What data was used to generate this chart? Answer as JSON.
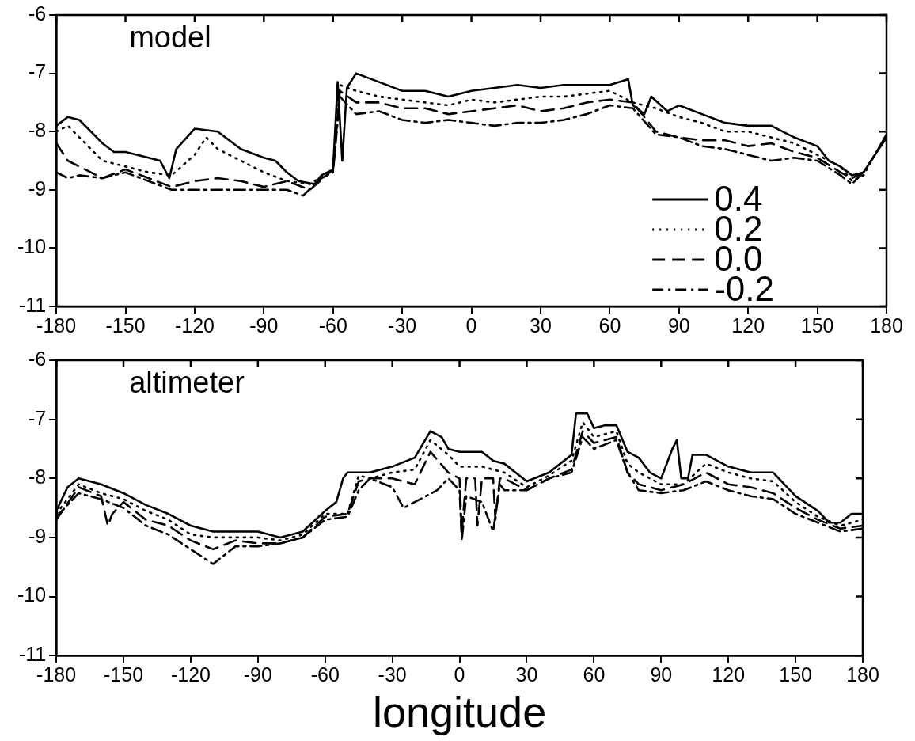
{
  "chart_data": [
    {
      "type": "line",
      "title": "model",
      "xlim": [
        -180,
        180
      ],
      "xticks": [
        -180,
        -150,
        -120,
        -90,
        -60,
        -30,
        0,
        30,
        60,
        90,
        120,
        150,
        180
      ],
      "ylim": [
        -11,
        -6
      ],
      "yticks": [
        -6,
        -7,
        -8,
        -9,
        -10,
        -11
      ],
      "grid": false,
      "legend": "bottom right",
      "series": [
        {
          "name": "0.4",
          "color": "#000000",
          "line_style": "solid",
          "x": [
            -180,
            -175,
            -170,
            -160,
            -155,
            -150,
            -140,
            -135,
            -131,
            -128,
            -120,
            -110,
            -100,
            -90,
            -85,
            -80,
            -75,
            -68,
            -65,
            -60,
            -58,
            -56,
            -54,
            -50,
            -40,
            -30,
            -20,
            -10,
            0,
            10,
            20,
            30,
            40,
            50,
            60,
            68,
            70,
            75,
            78,
            85,
            90,
            100,
            110,
            120,
            130,
            140,
            150,
            155,
            160,
            165,
            170,
            175,
            180
          ],
          "values": [
            -7.9,
            -7.75,
            -7.8,
            -8.2,
            -8.35,
            -8.35,
            -8.45,
            -8.5,
            -8.8,
            -8.3,
            -7.95,
            -8.0,
            -8.3,
            -8.45,
            -8.5,
            -8.7,
            -8.85,
            -8.9,
            -8.75,
            -8.65,
            -7.15,
            -8.5,
            -7.25,
            -7.0,
            -7.15,
            -7.3,
            -7.3,
            -7.4,
            -7.3,
            -7.25,
            -7.2,
            -7.25,
            -7.2,
            -7.2,
            -7.2,
            -7.1,
            -7.55,
            -7.7,
            -7.4,
            -7.65,
            -7.55,
            -7.7,
            -7.85,
            -7.9,
            -7.9,
            -8.1,
            -8.25,
            -8.5,
            -8.6,
            -8.75,
            -8.7,
            -8.4,
            -8.05
          ]
        },
        {
          "name": "0.2",
          "color": "#000000",
          "line_style": "dotted",
          "x": [
            -180,
            -175,
            -170,
            -160,
            -150,
            -140,
            -130,
            -120,
            -115,
            -110,
            -100,
            -90,
            -80,
            -70,
            -60,
            -57,
            -50,
            -40,
            -30,
            -20,
            -10,
            0,
            10,
            20,
            30,
            40,
            50,
            60,
            70,
            80,
            90,
            100,
            110,
            120,
            130,
            140,
            150,
            160,
            165,
            170,
            180
          ],
          "values": [
            -8.0,
            -7.9,
            -8.1,
            -8.5,
            -8.6,
            -8.7,
            -8.75,
            -8.4,
            -8.1,
            -8.3,
            -8.5,
            -8.7,
            -8.85,
            -8.9,
            -8.65,
            -7.2,
            -7.3,
            -7.4,
            -7.45,
            -7.5,
            -7.55,
            -7.45,
            -7.5,
            -7.45,
            -7.4,
            -7.4,
            -7.35,
            -7.3,
            -7.5,
            -7.6,
            -7.75,
            -7.85,
            -8.0,
            -8.0,
            -8.1,
            -8.2,
            -8.4,
            -8.6,
            -8.85,
            -8.75,
            -8.05
          ]
        },
        {
          "name": "0.0",
          "color": "#000000",
          "line_style": "dashed",
          "x": [
            -180,
            -175,
            -170,
            -160,
            -150,
            -140,
            -130,
            -120,
            -110,
            -100,
            -90,
            -80,
            -70,
            -60,
            -57,
            -50,
            -40,
            -30,
            -20,
            -10,
            0,
            10,
            20,
            30,
            40,
            50,
            60,
            70,
            80,
            90,
            100,
            110,
            120,
            130,
            140,
            150,
            160,
            165,
            170,
            180
          ],
          "values": [
            -8.2,
            -8.5,
            -8.6,
            -8.8,
            -8.65,
            -8.8,
            -8.95,
            -8.85,
            -8.8,
            -8.85,
            -8.95,
            -8.85,
            -9.0,
            -8.65,
            -7.3,
            -7.5,
            -7.5,
            -7.6,
            -7.6,
            -7.7,
            -7.65,
            -7.6,
            -7.55,
            -7.65,
            -7.6,
            -7.5,
            -7.45,
            -7.5,
            -8.0,
            -8.1,
            -8.15,
            -8.15,
            -8.25,
            -8.2,
            -8.35,
            -8.45,
            -8.7,
            -8.8,
            -8.7,
            -8.1
          ]
        },
        {
          "name": "-0.2",
          "color": "#000000",
          "line_style": "dashdot",
          "x": [
            -180,
            -175,
            -170,
            -160,
            -150,
            -140,
            -130,
            -120,
            -110,
            -100,
            -90,
            -80,
            -73,
            -65,
            -60,
            -57,
            -50,
            -40,
            -30,
            -20,
            -10,
            0,
            10,
            20,
            30,
            40,
            50,
            60,
            70,
            80,
            90,
            100,
            110,
            120,
            130,
            140,
            150,
            160,
            165,
            170,
            180
          ],
          "values": [
            -8.7,
            -8.8,
            -8.75,
            -8.8,
            -8.7,
            -8.85,
            -9.0,
            -9.0,
            -9.0,
            -9.0,
            -9.0,
            -9.0,
            -9.1,
            -8.8,
            -8.7,
            -7.4,
            -7.7,
            -7.65,
            -7.8,
            -7.85,
            -7.8,
            -7.85,
            -7.9,
            -7.85,
            -7.85,
            -7.8,
            -7.7,
            -7.55,
            -7.6,
            -8.05,
            -8.1,
            -8.25,
            -8.3,
            -8.4,
            -8.5,
            -8.45,
            -8.5,
            -8.75,
            -8.9,
            -8.7,
            -8.1
          ]
        }
      ]
    },
    {
      "type": "line",
      "title": "altimeter",
      "xlabel": "longitude",
      "xlim": [
        -180,
        180
      ],
      "xticks": [
        -180,
        -150,
        -120,
        -90,
        -60,
        -30,
        0,
        30,
        60,
        90,
        120,
        150,
        180
      ],
      "ylim": [
        -11,
        -6
      ],
      "yticks": [
        -6,
        -7,
        -8,
        -9,
        -10,
        -11
      ],
      "grid": false,
      "series": [
        {
          "color": "#000000",
          "line_style": "solid",
          "x": [
            -180,
            -175,
            -170,
            -160,
            -150,
            -140,
            -130,
            -120,
            -115,
            -110,
            -100,
            -90,
            -80,
            -70,
            -60,
            -55,
            -52,
            -50,
            -40,
            -30,
            -20,
            -13,
            -8,
            -5,
            0,
            10,
            15,
            20,
            30,
            40,
            45,
            50,
            52,
            57,
            60,
            65,
            70,
            75,
            80,
            85,
            90,
            95,
            97,
            99,
            102,
            104,
            110,
            120,
            130,
            140,
            150,
            160,
            165,
            170,
            175,
            180
          ],
          "values": [
            -8.55,
            -8.15,
            -8.0,
            -8.1,
            -8.25,
            -8.45,
            -8.6,
            -8.8,
            -8.85,
            -8.9,
            -8.9,
            -8.9,
            -9.0,
            -8.9,
            -8.55,
            -8.4,
            -8.0,
            -7.9,
            -7.9,
            -7.8,
            -7.65,
            -7.2,
            -7.3,
            -7.5,
            -7.55,
            -7.55,
            -7.7,
            -7.75,
            -8.05,
            -7.9,
            -7.75,
            -7.6,
            -6.9,
            -6.9,
            -7.15,
            -7.1,
            -7.1,
            -7.55,
            -7.65,
            -7.9,
            -8.0,
            -7.5,
            -7.35,
            -8.0,
            -8.0,
            -7.6,
            -7.6,
            -7.8,
            -7.9,
            -7.9,
            -8.3,
            -8.55,
            -8.75,
            -8.75,
            -8.6,
            -8.6
          ]
        },
        {
          "color": "#000000",
          "line_style": "dotted",
          "x": [
            -180,
            -170,
            -160,
            -150,
            -140,
            -130,
            -120,
            -110,
            -100,
            -90,
            -80,
            -70,
            -60,
            -50,
            -45,
            -40,
            -30,
            -20,
            -13,
            -5,
            0,
            10,
            20,
            30,
            40,
            50,
            55,
            60,
            70,
            75,
            80,
            90,
            100,
            110,
            120,
            130,
            140,
            150,
            160,
            170,
            180
          ],
          "values": [
            -8.6,
            -8.1,
            -8.25,
            -8.35,
            -8.55,
            -8.7,
            -8.95,
            -9.0,
            -9.0,
            -9.0,
            -9.05,
            -8.95,
            -8.6,
            -8.6,
            -7.95,
            -8.0,
            -7.9,
            -7.85,
            -7.35,
            -7.6,
            -7.8,
            -7.8,
            -7.9,
            -8.15,
            -7.95,
            -7.7,
            -7.05,
            -7.3,
            -7.2,
            -7.75,
            -7.9,
            -8.1,
            -8.1,
            -7.75,
            -7.9,
            -8.0,
            -8.05,
            -8.4,
            -8.65,
            -8.8,
            -8.7
          ]
        },
        {
          "color": "#000000",
          "line_style": "dashed",
          "x": [
            -180,
            -170,
            -160,
            -157,
            -155,
            -150,
            -140,
            -130,
            -120,
            -110,
            -100,
            -90,
            -80,
            -70,
            -60,
            -50,
            -45,
            -40,
            -30,
            -20,
            -13,
            -5,
            0,
            1,
            3,
            7,
            8,
            10,
            15,
            16,
            18,
            20,
            30,
            40,
            50,
            55,
            60,
            70,
            75,
            80,
            90,
            100,
            110,
            120,
            130,
            140,
            150,
            160,
            170,
            180
          ],
          "values": [
            -8.7,
            -8.15,
            -8.3,
            -8.8,
            -8.6,
            -8.4,
            -8.7,
            -8.8,
            -9.05,
            -9.2,
            -9.05,
            -9.1,
            -9.1,
            -9.0,
            -8.65,
            -8.6,
            -8.05,
            -8.0,
            -8.0,
            -8.1,
            -7.55,
            -7.9,
            -8.0,
            -8.9,
            -8.0,
            -8.0,
            -8.8,
            -8.0,
            -8.0,
            -8.7,
            -8.0,
            -8.0,
            -8.2,
            -8.0,
            -7.85,
            -7.2,
            -7.4,
            -7.3,
            -7.9,
            -8.1,
            -8.2,
            -8.1,
            -7.9,
            -8.1,
            -8.15,
            -8.25,
            -8.5,
            -8.7,
            -8.85,
            -8.8
          ]
        },
        {
          "color": "#000000",
          "line_style": "dashdot",
          "x": [
            -180,
            -170,
            -160,
            -150,
            -140,
            -130,
            -120,
            -110,
            -100,
            -90,
            -80,
            -70,
            -60,
            -50,
            -45,
            -40,
            -30,
            -25,
            -20,
            -10,
            -5,
            0,
            1,
            3,
            10,
            15,
            18,
            20,
            30,
            40,
            50,
            55,
            60,
            70,
            75,
            80,
            90,
            100,
            110,
            120,
            130,
            140,
            150,
            160,
            170,
            180
          ],
          "values": [
            -8.65,
            -8.25,
            -8.35,
            -8.5,
            -8.8,
            -8.95,
            -9.2,
            -9.45,
            -9.15,
            -9.15,
            -9.1,
            -9.0,
            -8.7,
            -8.65,
            -8.2,
            -8.0,
            -8.15,
            -8.5,
            -8.4,
            -8.2,
            -8.0,
            -8.2,
            -9.05,
            -8.3,
            -8.4,
            -8.9,
            -8.1,
            -8.2,
            -8.2,
            -8.0,
            -7.9,
            -7.3,
            -7.5,
            -7.35,
            -7.9,
            -8.2,
            -8.25,
            -8.2,
            -8.05,
            -8.2,
            -8.3,
            -8.35,
            -8.6,
            -8.75,
            -8.9,
            -8.85
          ]
        }
      ]
    }
  ]
}
